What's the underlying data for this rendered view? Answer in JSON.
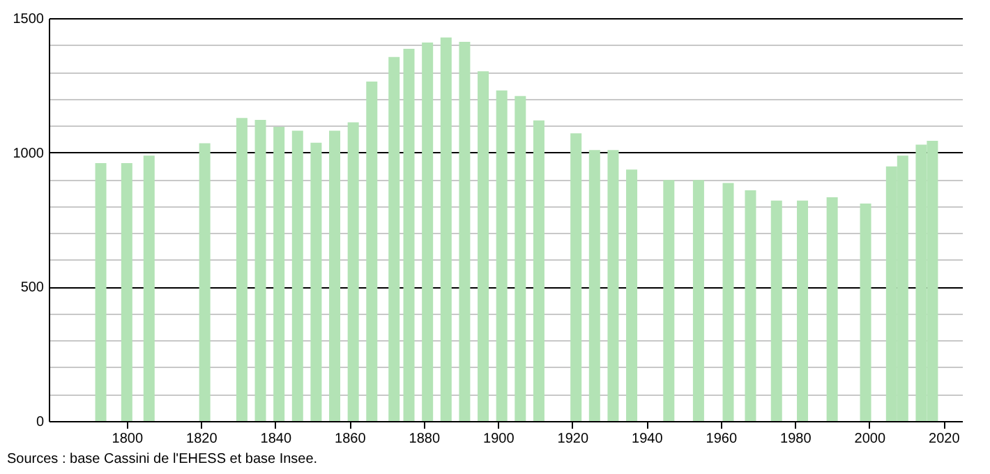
{
  "chart_data": {
    "type": "bar",
    "x": [
      1793,
      1800,
      1806,
      1821,
      1831,
      1836,
      1841,
      1846,
      1851,
      1856,
      1861,
      1866,
      1872,
      1876,
      1881,
      1886,
      1891,
      1896,
      1901,
      1906,
      1911,
      1921,
      1926,
      1931,
      1936,
      1946,
      1954,
      1962,
      1968,
      1975,
      1982,
      1990,
      1999,
      2006,
      2009,
      2014,
      2017
    ],
    "values": [
      960,
      960,
      988,
      1034,
      1128,
      1121,
      1095,
      1081,
      1036,
      1081,
      1112,
      1264,
      1355,
      1386,
      1409,
      1428,
      1412,
      1302,
      1231,
      1210,
      1119,
      1071,
      1009,
      1009,
      936,
      897,
      897,
      886,
      859,
      821,
      821,
      833,
      810,
      948,
      988,
      1029,
      1043
    ],
    "color": "#b3e3b5",
    "xlim": [
      1779,
      2025
    ],
    "xticks": [
      1800,
      1820,
      1840,
      1860,
      1880,
      1900,
      1920,
      1940,
      1960,
      1980,
      2000,
      2020
    ],
    "ylim": [
      0,
      1500
    ],
    "yticks": [
      0,
      {
        "value": 100,
        "label": null
      },
      {
        "value": 200,
        "label": null
      },
      {
        "value": 300,
        "label": null
      },
      {
        "value": 400,
        "label": null
      },
      500,
      {
        "value": 600,
        "label": null
      },
      {
        "value": 700,
        "label": null
      },
      {
        "value": 800,
        "label": null
      },
      {
        "value": 900,
        "label": null
      },
      1000,
      {
        "value": 1100,
        "label": null
      },
      {
        "value": 1200,
        "label": null
      },
      {
        "value": 1300,
        "label": null
      },
      {
        "value": 1400,
        "label": null
      },
      1500
    ],
    "grid": "y",
    "annotations": [
      "Sources : base Cassini de l'EHESS et base Insee."
    ]
  }
}
